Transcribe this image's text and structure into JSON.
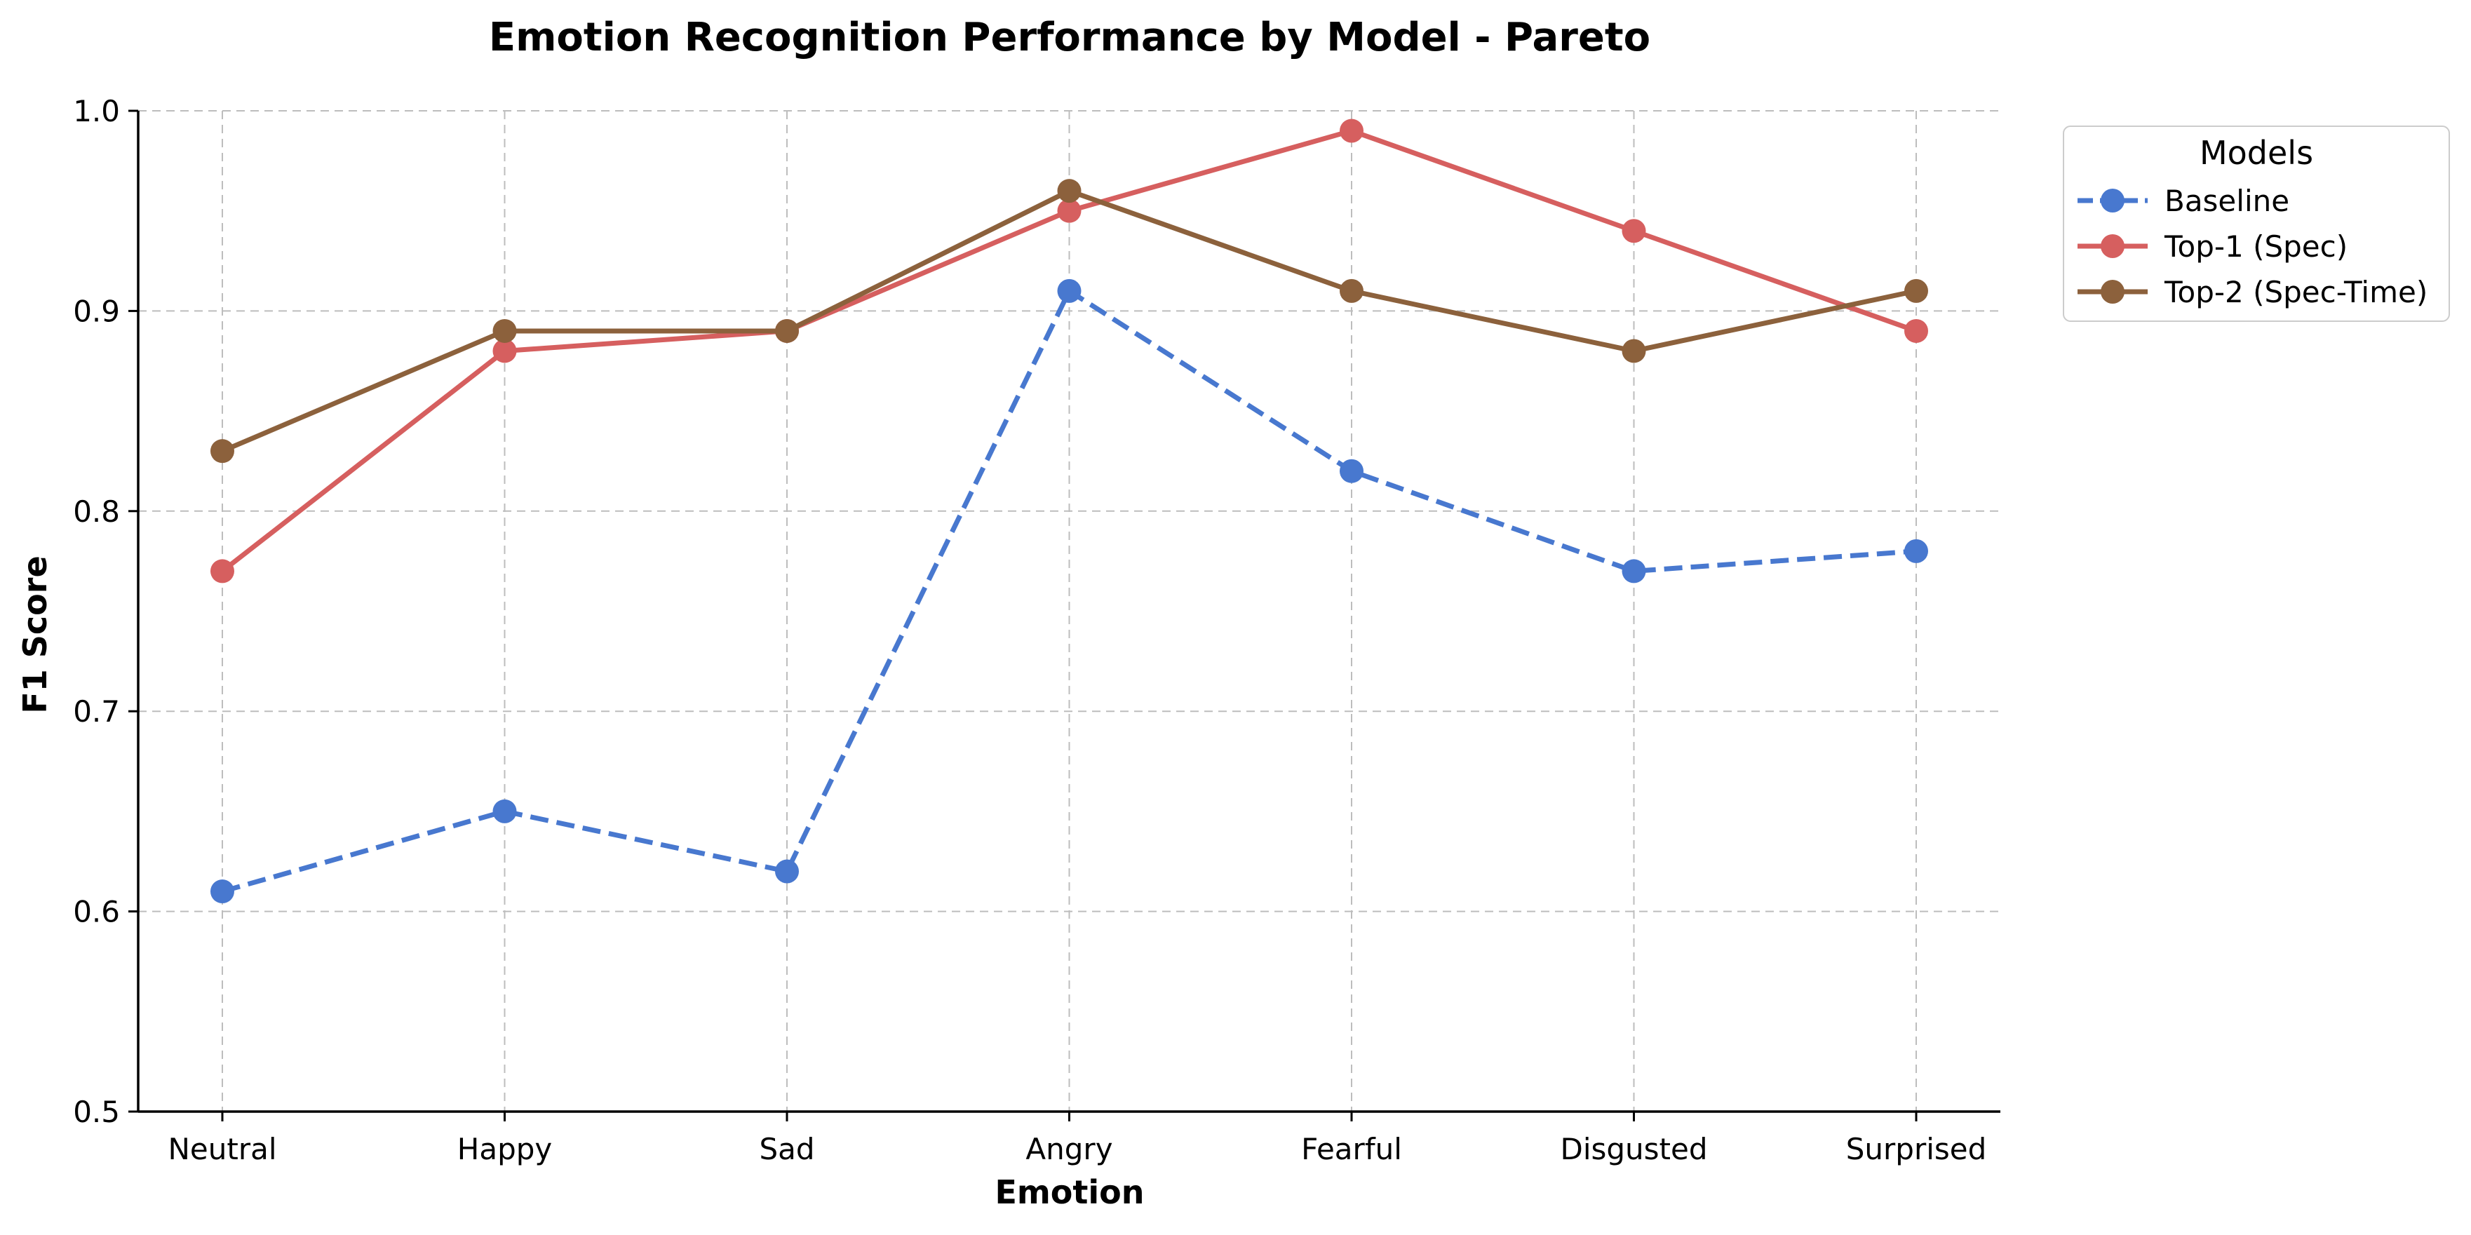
{
  "chart_data": {
    "type": "line",
    "title": "Emotion Recognition Performance by Model - Pareto",
    "xlabel": "Emotion",
    "ylabel": "F1 Score",
    "categories": [
      "Neutral",
      "Happy",
      "Sad",
      "Angry",
      "Fearful",
      "Disgusted",
      "Surprised"
    ],
    "ylim": [
      0.5,
      1.0
    ],
    "yticks": [
      "0.5",
      "0.6",
      "0.7",
      "0.8",
      "0.9",
      "1.0"
    ],
    "grid": true,
    "legend": {
      "title": "Models",
      "placement": "outside-top-right"
    },
    "series": [
      {
        "name": "Baseline",
        "color": "#4878CF",
        "linestyle": "dashed",
        "marker": "circle",
        "values": [
          0.61,
          0.65,
          0.62,
          0.91,
          0.82,
          0.77,
          0.78
        ]
      },
      {
        "name": "Top-1 (Spec)",
        "color": "#D65F5F",
        "linestyle": "solid",
        "marker": "circle",
        "values": [
          0.77,
          0.88,
          0.89,
          0.95,
          0.99,
          0.94,
          0.89
        ]
      },
      {
        "name": "Top-2 (Spec-Time)",
        "color": "#8C613C",
        "linestyle": "solid",
        "marker": "circle",
        "values": [
          0.83,
          0.89,
          0.89,
          0.96,
          0.91,
          0.88,
          0.91
        ]
      }
    ]
  }
}
